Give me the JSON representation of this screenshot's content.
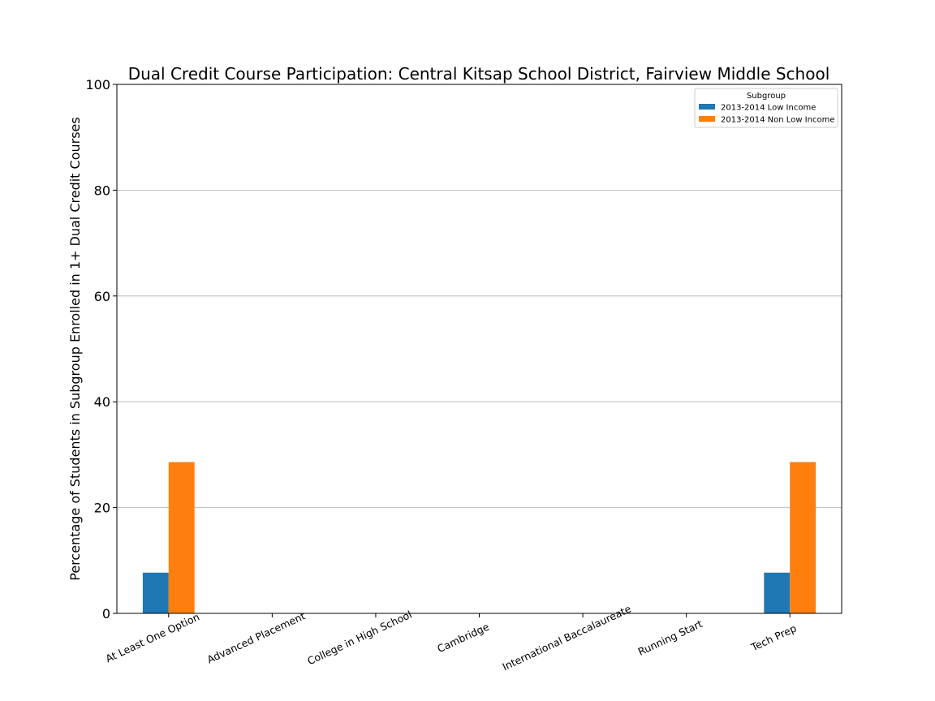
{
  "chart_data": {
    "type": "bar",
    "title": "Dual Credit Course Participation: Central Kitsap School District, Fairview Middle School",
    "xlabel": "",
    "ylabel": "Percentage of Students in Subgroup Enrolled in 1+ Dual Credit Courses",
    "ylim": [
      0,
      100
    ],
    "yticks": [
      0,
      20,
      40,
      60,
      80,
      100
    ],
    "grid": "horizontal",
    "legend": {
      "title": "Subgroup",
      "placement": "top-right"
    },
    "categories": [
      "At Least One Option",
      "Advanced Placement",
      "College in High School",
      "Cambridge",
      "International Baccalaureate",
      "Running Start",
      "Tech Prep"
    ],
    "series": [
      {
        "name": "2013-2014 Low Income",
        "color": "#1f77b4",
        "values": [
          7.7,
          0,
          0,
          0,
          0,
          0,
          7.7
        ]
      },
      {
        "name": "2013-2014 Non Low Income",
        "color": "#ff7f0e",
        "values": [
          28.6,
          0,
          0,
          0,
          0,
          0,
          28.6
        ]
      }
    ]
  }
}
